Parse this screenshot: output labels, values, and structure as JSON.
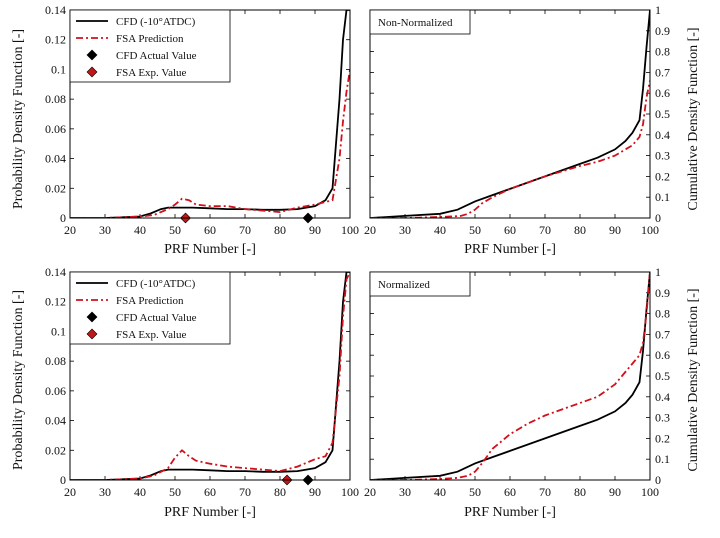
{
  "figure": {
    "ylabel_left": "Probability Density Function [-]",
    "ylabel_right": "Cumulative Density Function [-]",
    "xlabel": "PRF Number [-]"
  },
  "colors": {
    "cfd": "#000000",
    "fsa": "#d0101a",
    "fsa_marker": "#c0181a"
  },
  "chart_data": [
    {
      "type": "line",
      "panel": "top-left",
      "title": "",
      "xlabel": "PRF Number [-]",
      "ylabel": "Probability Density Function [-]",
      "xlim": [
        20,
        100
      ],
      "ylim": [
        0,
        0.14
      ],
      "xticks": [
        "20",
        "30",
        "40",
        "50",
        "60",
        "70",
        "80",
        "90",
        "100"
      ],
      "yticks": [
        "0",
        "0.02",
        "0.04",
        "0.06",
        "0.08",
        "0.1",
        "0.12",
        "0.14"
      ],
      "legend": [
        "CFD (-10°ATDC)",
        "FSA Prediction",
        "CFD Actual Value",
        "FSA Exp. Value"
      ],
      "series": [
        {
          "name": "CFD (-10°ATDC)",
          "x": [
            20,
            30,
            35,
            40,
            43,
            46,
            48,
            50,
            55,
            60,
            65,
            70,
            75,
            80,
            85,
            90,
            93,
            95,
            97,
            98,
            99,
            100
          ],
          "y": [
            0,
            0,
            0.0005,
            0.001,
            0.003,
            0.006,
            0.007,
            0.007,
            0.007,
            0.0065,
            0.006,
            0.006,
            0.0055,
            0.0055,
            0.006,
            0.008,
            0.012,
            0.02,
            0.08,
            0.12,
            0.14,
            0.14
          ]
        },
        {
          "name": "FSA Prediction",
          "x": [
            20,
            30,
            40,
            44,
            48,
            50,
            52,
            54,
            56,
            60,
            65,
            70,
            75,
            80,
            85,
            90,
            95,
            97,
            98,
            99,
            100
          ],
          "y": [
            0,
            0,
            0.001,
            0.002,
            0.006,
            0.009,
            0.013,
            0.012,
            0.009,
            0.008,
            0.008,
            0.006,
            0.005,
            0.004,
            0.007,
            0.009,
            0.012,
            0.04,
            0.065,
            0.085,
            0.1
          ]
        }
      ],
      "markers": [
        {
          "name": "CFD Actual Value",
          "x": 88,
          "y": 0
        },
        {
          "name": "FSA Exp. Value",
          "x": 53,
          "y": 0
        }
      ]
    },
    {
      "type": "line",
      "panel": "top-right",
      "title": "Non-Normalized",
      "xlabel": "PRF Number [-]",
      "ylabel": "Cumulative Density Function [-]",
      "xlim": [
        20,
        100
      ],
      "ylim": [
        0,
        1
      ],
      "xticks": [
        "20",
        "30",
        "40",
        "50",
        "60",
        "70",
        "80",
        "90",
        "100"
      ],
      "yticks": [
        "0",
        "0.1",
        "0.2",
        "0.3",
        "0.4",
        "0.5",
        "0.6",
        "0.7",
        "0.8",
        "0.9",
        "1"
      ],
      "series": [
        {
          "name": "CFD (-10°ATDC)",
          "x": [
            20,
            30,
            40,
            45,
            50,
            55,
            60,
            70,
            80,
            85,
            90,
            93,
            95,
            97,
            98,
            99,
            100
          ],
          "y": [
            0,
            0.01,
            0.02,
            0.04,
            0.08,
            0.11,
            0.14,
            0.2,
            0.26,
            0.29,
            0.33,
            0.37,
            0.41,
            0.47,
            0.62,
            0.82,
            1.0
          ]
        },
        {
          "name": "FSA Prediction",
          "x": [
            20,
            30,
            40,
            46,
            48,
            50,
            52,
            55,
            60,
            70,
            80,
            85,
            90,
            95,
            97,
            98,
            99,
            100
          ],
          "y": [
            0,
            0,
            0.005,
            0.01,
            0.02,
            0.04,
            0.07,
            0.1,
            0.14,
            0.2,
            0.25,
            0.27,
            0.3,
            0.35,
            0.39,
            0.45,
            0.58,
            0.66
          ]
        }
      ]
    },
    {
      "type": "line",
      "panel": "bottom-left",
      "title": "",
      "xlabel": "PRF Number [-]",
      "ylabel": "Probability Density Function [-]",
      "xlim": [
        20,
        100
      ],
      "ylim": [
        0,
        0.14
      ],
      "xticks": [
        "20",
        "30",
        "40",
        "50",
        "60",
        "70",
        "80",
        "90",
        "100"
      ],
      "yticks": [
        "0",
        "0.02",
        "0.04",
        "0.06",
        "0.08",
        "0.1",
        "0.12",
        "0.14"
      ],
      "legend": [
        "CFD (-10°ATDC)",
        "FSA Prediction",
        "CFD Actual Value",
        "FSA Exp. Value"
      ],
      "series": [
        {
          "name": "CFD (-10°ATDC)",
          "x": [
            20,
            30,
            35,
            40,
            43,
            46,
            48,
            50,
            55,
            60,
            65,
            70,
            75,
            80,
            85,
            90,
            93,
            95,
            97,
            98,
            99,
            100
          ],
          "y": [
            0,
            0,
            0.0005,
            0.001,
            0.003,
            0.006,
            0.007,
            0.007,
            0.007,
            0.0065,
            0.006,
            0.006,
            0.0055,
            0.0055,
            0.006,
            0.008,
            0.012,
            0.02,
            0.08,
            0.12,
            0.14,
            0.14
          ]
        },
        {
          "name": "FSA Prediction",
          "x": [
            20,
            30,
            40,
            44,
            48,
            50,
            52,
            54,
            56,
            60,
            65,
            70,
            75,
            80,
            85,
            90,
            93,
            95,
            97,
            98,
            99,
            100
          ],
          "y": [
            0,
            0,
            0.001,
            0.003,
            0.008,
            0.015,
            0.02,
            0.016,
            0.013,
            0.011,
            0.009,
            0.008,
            0.007,
            0.006,
            0.009,
            0.014,
            0.016,
            0.025,
            0.07,
            0.11,
            0.135,
            0.14
          ]
        }
      ],
      "markers": [
        {
          "name": "CFD Actual Value",
          "x": 88,
          "y": 0
        },
        {
          "name": "FSA Exp. Value",
          "x": 82,
          "y": 0
        }
      ]
    },
    {
      "type": "line",
      "panel": "bottom-right",
      "title": "Normalized",
      "xlabel": "PRF Number [-]",
      "ylabel": "Cumulative Density Function [-]",
      "xlim": [
        20,
        100
      ],
      "ylim": [
        0,
        1
      ],
      "xticks": [
        "20",
        "30",
        "40",
        "50",
        "60",
        "70",
        "80",
        "90",
        "100"
      ],
      "yticks": [
        "0",
        "0.1",
        "0.2",
        "0.3",
        "0.4",
        "0.5",
        "0.6",
        "0.7",
        "0.8",
        "0.9",
        "1"
      ],
      "series": [
        {
          "name": "CFD (-10°ATDC)",
          "x": [
            20,
            30,
            40,
            45,
            50,
            55,
            60,
            70,
            80,
            85,
            90,
            93,
            95,
            97,
            98,
            99,
            100
          ],
          "y": [
            0,
            0.01,
            0.02,
            0.04,
            0.08,
            0.11,
            0.14,
            0.2,
            0.26,
            0.29,
            0.33,
            0.37,
            0.41,
            0.47,
            0.62,
            0.82,
            1.0
          ]
        },
        {
          "name": "FSA Prediction",
          "x": [
            20,
            30,
            40,
            45,
            48,
            50,
            52,
            55,
            60,
            65,
            70,
            80,
            85,
            90,
            95,
            97,
            98,
            99,
            100
          ],
          "y": [
            0,
            0,
            0.005,
            0.01,
            0.02,
            0.04,
            0.08,
            0.15,
            0.22,
            0.27,
            0.31,
            0.37,
            0.4,
            0.46,
            0.56,
            0.6,
            0.66,
            0.8,
            1.0
          ]
        }
      ]
    }
  ]
}
